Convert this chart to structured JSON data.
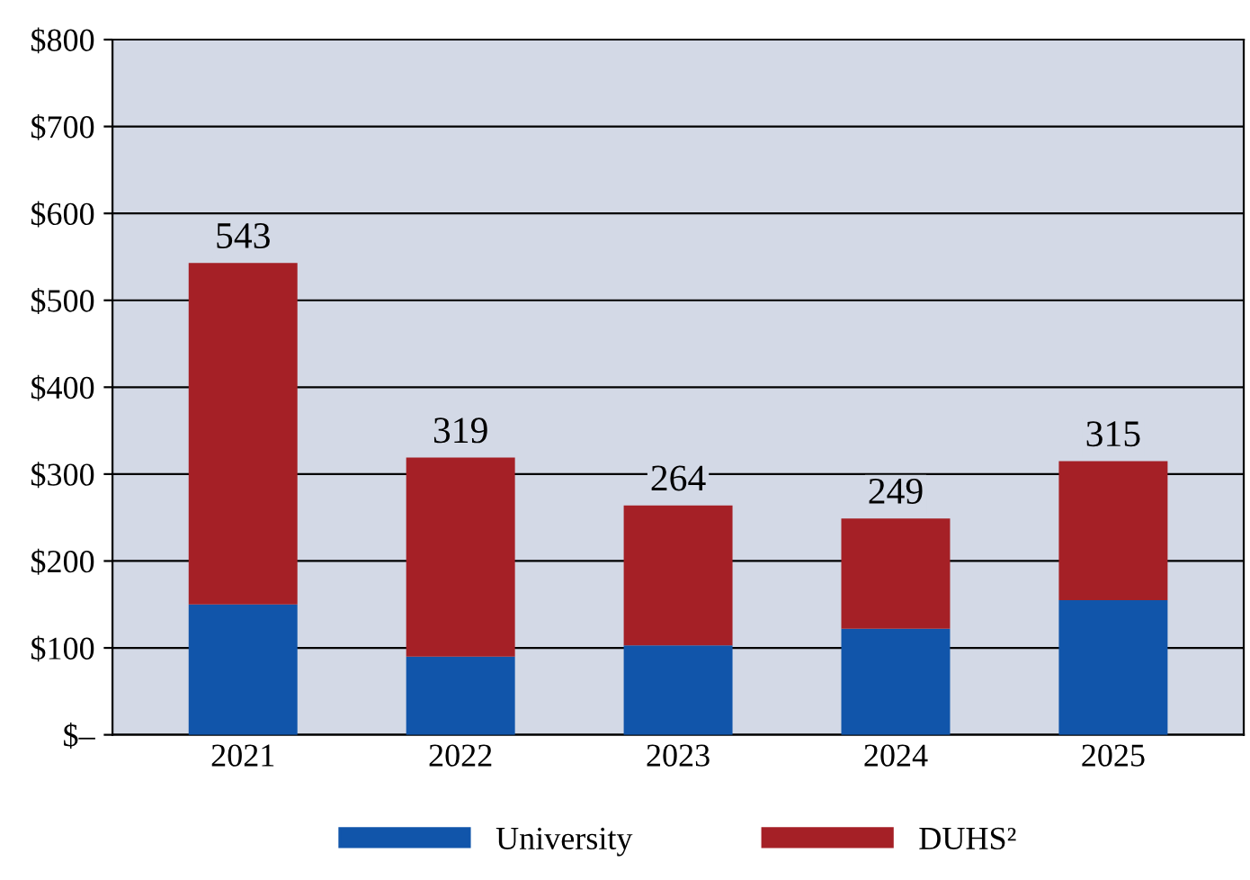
{
  "chart_data": {
    "type": "bar",
    "stacked": true,
    "categories": [
      "2021",
      "2022",
      "2023",
      "2024",
      "2025"
    ],
    "series": [
      {
        "name": "University",
        "color": "#1155aa",
        "values": [
          150,
          90,
          103,
          122,
          155
        ]
      },
      {
        "name": "DUHS²",
        "color": "#a52026",
        "values": [
          393,
          229,
          161,
          127,
          160
        ]
      }
    ],
    "totals": [
      "543",
      "319",
      "264",
      "249",
      "315"
    ],
    "ylim": [
      0,
      800
    ],
    "yticks": [
      {
        "value": 0,
        "label": "$–"
      },
      {
        "value": 100,
        "label": "$100"
      },
      {
        "value": 200,
        "label": "$200"
      },
      {
        "value": 300,
        "label": "$300"
      },
      {
        "value": 400,
        "label": "$400"
      },
      {
        "value": 500,
        "label": "$500"
      },
      {
        "value": 600,
        "label": "$600"
      },
      {
        "value": 700,
        "label": "$700"
      },
      {
        "value": 800,
        "label": "$800"
      }
    ],
    "grid": "y",
    "legend": "bottom"
  }
}
